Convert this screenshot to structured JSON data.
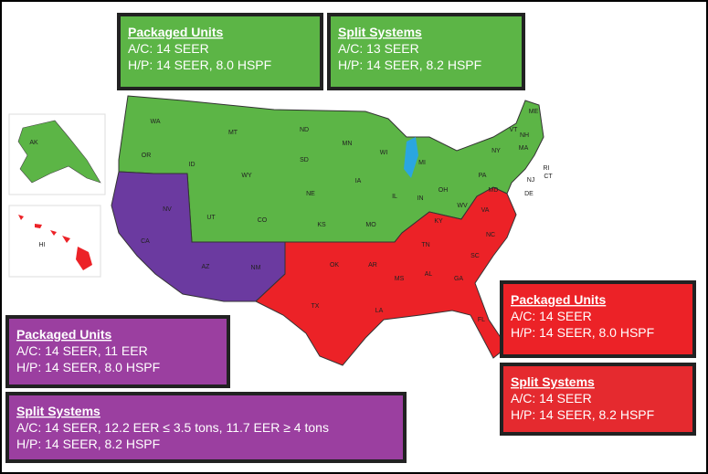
{
  "boxes": [
    {
      "title": "Packaged Units",
      "lines": [
        "A/C: 14 SEER",
        "H/P: 14 SEER,  8.0 HSPF"
      ],
      "color": "#5cb546"
    },
    {
      "title": "Split Systems",
      "lines": [
        "A/C: 13 SEER",
        " H/P: 14 SEER, 8.2 HSPF"
      ],
      "color": "#5cb546"
    },
    {
      "title": "Packaged Units",
      "lines": [
        "A/C: 14 SEER, 11 EER",
        "H/P: 14 SEER,  8.0 HSPF"
      ],
      "color": "#9b3fa0"
    },
    {
      "title": "Split Systems",
      "lines": [
        "A/C: 14 SEER, 12.2 EER ≤ 3.5 tons, 11.7 EER ≥ 4 tons",
        "H/P: 14 SEER, 8.2 HSPF"
      ],
      "color": "#9b3fa0"
    },
    {
      "title": "Packaged Units",
      "lines": [
        "A/C: 14 SEER",
        "H/P: 14 SEER,  8.0 HSPF"
      ],
      "color": "#ec2227"
    },
    {
      "title": "Split Systems",
      "lines": [
        "A/C: 14 SEER",
        "H/P: 14 SEER, 8.2 HSPF"
      ],
      "color": "#e52a2f"
    }
  ],
  "states": [
    "WA",
    "OR",
    "ID",
    "MT",
    "WY",
    "ND",
    "SD",
    "NE",
    "MN",
    "IA",
    "WI",
    "MI",
    "IL",
    "IN",
    "OH",
    "PA",
    "NY",
    "ME",
    "VT",
    "NH",
    "MA",
    "CT",
    "RI",
    "NJ",
    "DE",
    "MD",
    "WV",
    "VA",
    "KY",
    "TN",
    "NC",
    "SC",
    "GA",
    "AL",
    "MS",
    "LA",
    "AR",
    "OK",
    "TX",
    "FL",
    "MO",
    "KS",
    "CO",
    "UT",
    "NV",
    "CA",
    "AZ",
    "NM",
    "AK",
    "HI"
  ]
}
